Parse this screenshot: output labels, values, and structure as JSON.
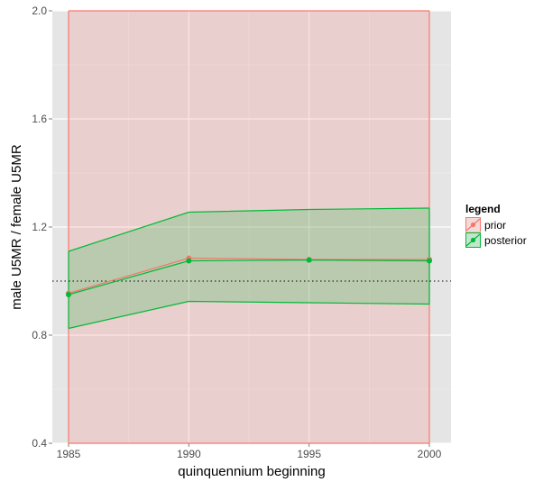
{
  "chart_data": {
    "type": "line",
    "xlabel": "quinquennium beginning",
    "ylabel": "male U5MR / female U5MR",
    "xlim": [
      1985,
      2000
    ],
    "ylim": [
      0.4,
      2.0
    ],
    "x_ticks": [
      "1985",
      "1990",
      "1995",
      "2000"
    ],
    "y_ticks": [
      "0.4",
      "0.8",
      "1.2",
      "1.6",
      "2.0"
    ],
    "x": [
      1985,
      1990,
      1995,
      2000
    ],
    "reference_line_y": 1.0,
    "grid": true,
    "legend_title": "legend",
    "legend_position": "right",
    "series": [
      {
        "name": "prior",
        "color": "#f8766d",
        "band": {
          "lower": [
            0.4,
            0.4,
            0.4,
            0.4
          ],
          "upper": [
            2.0,
            2.0,
            2.0,
            2.0
          ]
        },
        "values": [
          0.955,
          1.085,
          1.08,
          1.08
        ]
      },
      {
        "name": "posterior",
        "color": "#00ba38",
        "band": {
          "lower": [
            0.825,
            0.925,
            0.92,
            0.915
          ],
          "upper": [
            1.11,
            1.255,
            1.265,
            1.27
          ]
        },
        "values": [
          0.95,
          1.075,
          1.078,
          1.075
        ]
      }
    ]
  }
}
